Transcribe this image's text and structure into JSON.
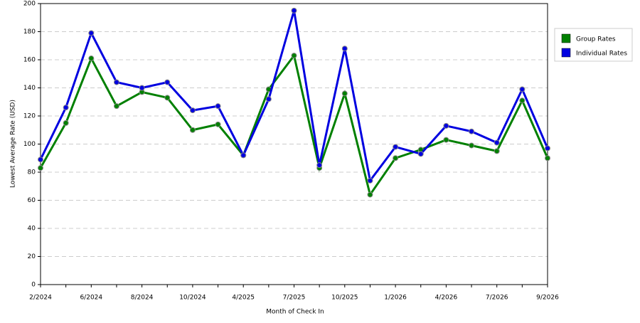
{
  "chart_data": {
    "type": "line",
    "x_label": "Month of Check In",
    "y_label": "Lowest Average Rate (USD)",
    "categories": [
      "2/2024",
      null,
      "6/2024",
      null,
      "8/2024",
      null,
      "10/2024",
      null,
      "4/2025",
      null,
      "7/2025",
      null,
      "10/2025",
      null,
      "1/2026",
      null,
      "4/2026",
      null,
      "7/2026",
      null,
      "9/2026"
    ],
    "series": [
      {
        "name": "Group Rates",
        "color": "#008000",
        "values": [
          83,
          115,
          161,
          127,
          137,
          133,
          110,
          114,
          92,
          139,
          163,
          83,
          136,
          64,
          90,
          96,
          103,
          99,
          95,
          131,
          90
        ]
      },
      {
        "name": "Individual Rates",
        "color": "#0000e0",
        "values": [
          89,
          126,
          179,
          144,
          140,
          144,
          124,
          127,
          92,
          132,
          195,
          85,
          168,
          74,
          98,
          93,
          113,
          109,
          101,
          139,
          97
        ]
      }
    ],
    "ylim": [
      0,
      200
    ],
    "yticks": [
      0,
      20,
      40,
      60,
      80,
      100,
      120,
      140,
      160,
      180,
      200
    ],
    "grid": true,
    "legend": "right"
  }
}
